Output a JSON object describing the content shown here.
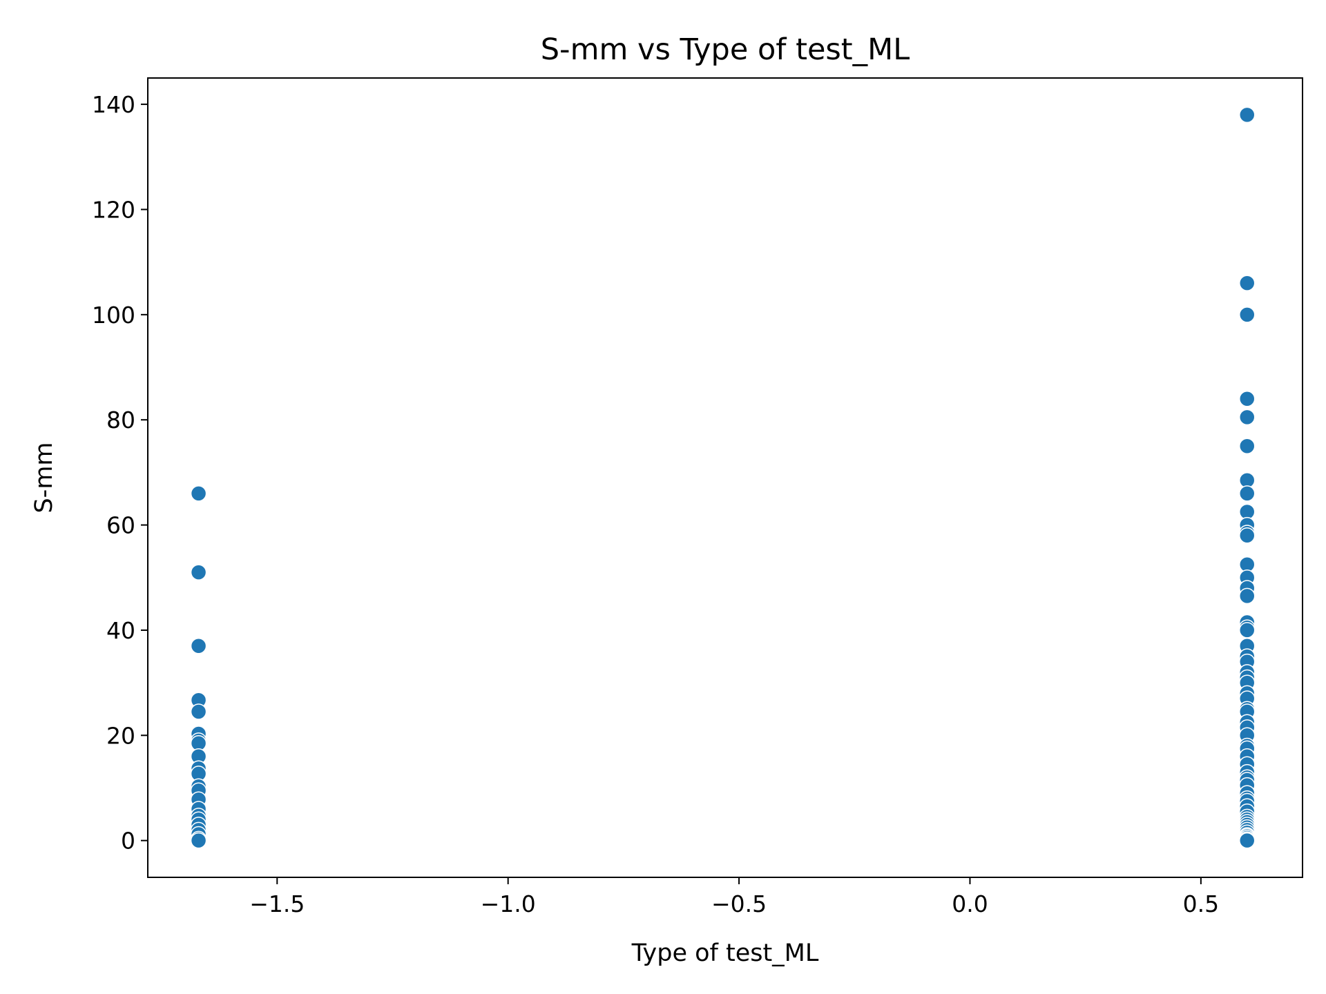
{
  "chart_data": {
    "type": "scatter",
    "title": "S-mm vs Type of test_ML",
    "xlabel": "Type of test_ML",
    "ylabel": "S-mm",
    "xlim": [
      -1.78,
      0.72
    ],
    "ylim": [
      -7,
      145
    ],
    "x_ticks": [
      -1.5,
      -1.0,
      -0.5,
      0.0,
      0.5
    ],
    "x_tick_labels": [
      "−1.5",
      "−1.0",
      "−0.5",
      "0.0",
      "0.5"
    ],
    "y_ticks": [
      0,
      20,
      40,
      60,
      80,
      100,
      120,
      140
    ],
    "y_tick_labels": [
      "0",
      "20",
      "40",
      "60",
      "80",
      "100",
      "120",
      "140"
    ],
    "grid": false,
    "marker_color": "#1f77b4",
    "marker_edge_color": "#ffffff",
    "series": [
      {
        "x": [
          -1.67,
          -1.67,
          -1.67,
          -1.67,
          -1.67,
          -1.67,
          -1.67,
          -1.67,
          -1.67,
          -1.67,
          -1.67,
          -1.67,
          -1.67,
          -1.67,
          -1.67,
          -1.67,
          -1.67,
          -1.67,
          -1.67,
          -1.67,
          -1.67,
          -1.67
        ],
        "y": [
          66,
          51,
          37,
          26.7,
          24.5,
          20.3,
          19,
          18.5,
          16,
          13.7,
          12.7,
          10.3,
          9.5,
          7.8,
          6,
          4.7,
          4,
          3,
          2,
          1.2,
          0.3,
          0
        ]
      },
      {
        "x": [
          0.6,
          0.6,
          0.6,
          0.6,
          0.6,
          0.6,
          0.6,
          0.6,
          0.6,
          0.6,
          0.6,
          0.6,
          0.6,
          0.6,
          0.6,
          0.6,
          0.6,
          0.6,
          0.6,
          0.6,
          0.6,
          0.6,
          0.6,
          0.6,
          0.6,
          0.6,
          0.6,
          0.6,
          0.6,
          0.6,
          0.6,
          0.6,
          0.6,
          0.6,
          0.6,
          0.6,
          0.6,
          0.6,
          0.6,
          0.6,
          0.6,
          0.6,
          0.6,
          0.6,
          0.6,
          0.6,
          0.6,
          0.6,
          0.6,
          0.6,
          0.6,
          0.6,
          0.6,
          0.6,
          0.6,
          0.6,
          0.6
        ],
        "y": [
          138,
          106,
          100,
          84,
          80.5,
          75,
          68.5,
          66,
          62.5,
          60,
          58.5,
          58,
          52.5,
          50,
          48,
          46.5,
          41.5,
          40.5,
          40,
          37,
          35,
          34,
          32,
          31,
          30,
          28,
          27,
          25,
          24.5,
          22.5,
          21.5,
          20,
          18,
          17.5,
          16,
          14.5,
          13,
          12,
          11.5,
          10.5,
          9,
          8,
          7.5,
          6.5,
          5.5,
          4.5,
          4,
          3.5,
          3,
          2.5,
          2,
          1.5,
          1,
          0.8,
          0.5,
          0.2,
          0
        ]
      }
    ]
  }
}
